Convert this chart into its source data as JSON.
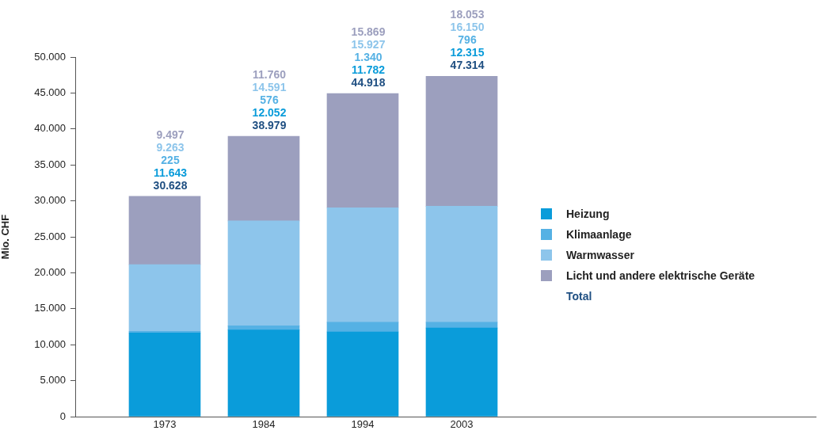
{
  "chart_data": {
    "type": "bar",
    "stacked": true,
    "ylabel": "Mio. CHF",
    "categories": [
      "1973",
      "1984",
      "1994",
      "2003"
    ],
    "series": [
      {
        "name": "Heizung",
        "color": "#0a9cda",
        "values": [
          11643,
          12052,
          11782,
          12315
        ]
      },
      {
        "name": "Klimaanlage",
        "color": "#55b1e4",
        "values": [
          225,
          576,
          1340,
          796
        ]
      },
      {
        "name": "Warmwasser",
        "color": "#8dc5eb",
        "values": [
          9263,
          14591,
          15927,
          16150
        ]
      },
      {
        "name": "Licht und andere elektrische Geräte",
        "color": "#9c9fbe",
        "values": [
          9497,
          11760,
          15869,
          18053
        ]
      }
    ],
    "totals": [
      "30.628",
      "38.979",
      "44.918",
      "47.314"
    ],
    "annotations": [
      "11.643",
      "225",
      "9.263",
      "9.497",
      "12.052",
      "576",
      "14.591",
      "11.760",
      "11.782",
      "1.340",
      "15.927",
      "15.869",
      "12.315",
      "796",
      "16.150",
      "18.053",
      "Total"
    ],
    "ylim": [
      0,
      50000
    ],
    "yticks": [
      0,
      {
        "value": 5000,
        "label": "5.000"
      },
      {
        "value": 10000,
        "label": "10.000"
      },
      {
        "value": 15000,
        "label": "15.000"
      },
      {
        "value": 20000,
        "label": "20.000"
      },
      {
        "value": 25000,
        "label": "25.000"
      },
      {
        "value": 30000,
        "label": "30.000"
      },
      {
        "value": 35000,
        "label": "35.000"
      },
      {
        "value": 40000,
        "label": "40.000"
      },
      {
        "value": 45000,
        "label": "45.000"
      },
      {
        "value": 50000,
        "label": "50.000"
      }
    ],
    "grid": false,
    "legend": "right"
  }
}
